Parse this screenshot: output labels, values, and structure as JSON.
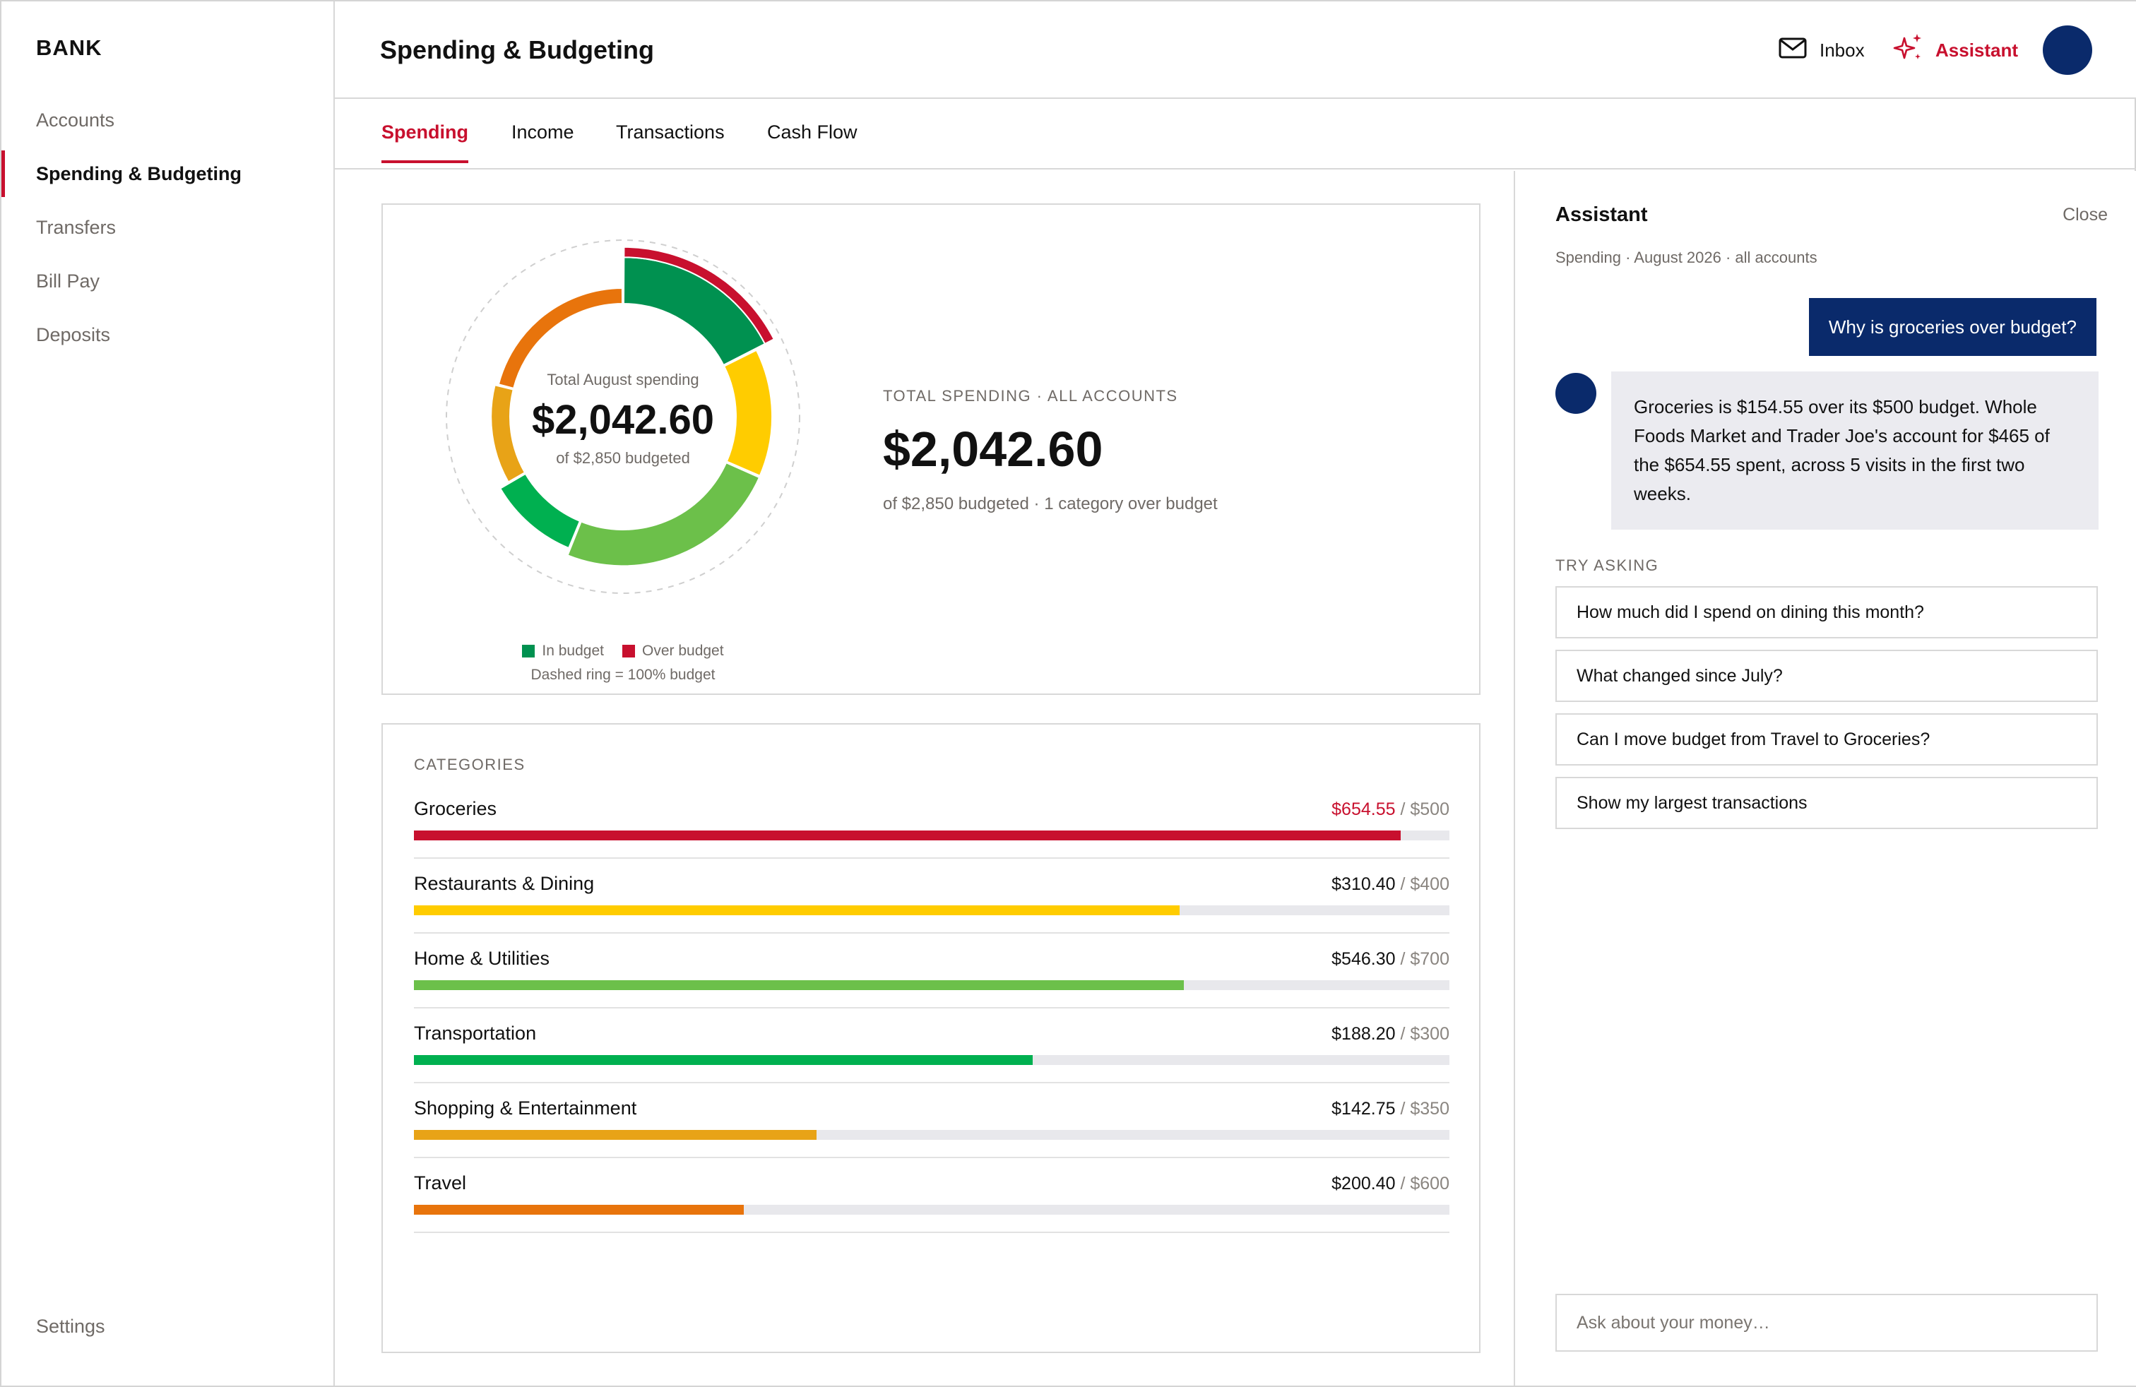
{
  "brand": "BANK",
  "nav": {
    "items": [
      {
        "label": "Accounts",
        "active": false
      },
      {
        "label": "Spending & Budgeting",
        "active": true
      },
      {
        "label": "Transfers",
        "active": false
      },
      {
        "label": "Bill Pay",
        "active": false
      },
      {
        "label": "Deposits",
        "active": false
      }
    ],
    "settings_label": "Settings"
  },
  "header": {
    "title": "Spending & Budgeting",
    "inbox_label": "Inbox",
    "assistant_label": "Assistant"
  },
  "tabs": [
    {
      "label": "Spending",
      "active": true
    },
    {
      "label": "Income",
      "active": false
    },
    {
      "label": "Transactions",
      "active": false
    },
    {
      "label": "Cash Flow",
      "active": false
    }
  ],
  "summary": {
    "donut_label": "Total August spending",
    "donut_value": "$2,042.60",
    "donut_sub": "of $2,850 budgeted",
    "caption": "TOTAL SPENDING · ALL ACCOUNTS",
    "value": "$2,042.60",
    "sub": "of $2,850 budgeted · 1 category over budget",
    "legend_in": "In budget",
    "legend_over": "Over budget",
    "legend_note": "Dashed ring = 100% budget"
  },
  "categories": {
    "title": "CATEGORIES",
    "items": [
      {
        "name": "Groceries",
        "spent": "$654.55",
        "budget": "/ $500",
        "spent_value": 654.55,
        "budget_value": 500,
        "over": true,
        "color": "#c8102e"
      },
      {
        "name": "Restaurants & Dining",
        "spent": "$310.40",
        "budget": "/ $400",
        "spent_value": 310.4,
        "budget_value": 400,
        "over": false,
        "color": "#ffcc00"
      },
      {
        "name": "Home & Utilities",
        "spent": "$546.30",
        "budget": "/ $700",
        "spent_value": 546.3,
        "budget_value": 700,
        "over": false,
        "color": "#6cc04a"
      },
      {
        "name": "Transportation",
        "spent": "$188.20",
        "budget": "/ $300",
        "spent_value": 188.2,
        "budget_value": 300,
        "over": false,
        "color": "#00b050"
      },
      {
        "name": "Shopping & Entertainment",
        "spent": "$142.75",
        "budget": "/ $350",
        "spent_value": 142.75,
        "budget_value": 350,
        "over": false,
        "color": "#e8a317"
      },
      {
        "name": "Travel",
        "spent": "$200.40",
        "budget": "/ $600",
        "spent_value": 200.4,
        "budget_value": 600,
        "over": false,
        "color": "#e8740c"
      }
    ]
  },
  "donut_segments": [
    {
      "category": "Groceries",
      "color": "#009150",
      "over_color": "#c8102e"
    },
    {
      "category": "Restaurants & Dining",
      "color": "#ffcc00"
    },
    {
      "category": "Home & Utilities",
      "color": "#6cc04a"
    },
    {
      "category": "Transportation",
      "color": "#00b050"
    },
    {
      "category": "Shopping & Entertainment",
      "color": "#e8a317"
    },
    {
      "category": "Travel",
      "color": "#e8740c"
    }
  ],
  "assistant": {
    "title": "Assistant",
    "close_label": "Close",
    "context": "Spending · August 2026 · all accounts",
    "user_message": "Why is groceries over budget?",
    "bot_message": "Groceries is $154.55 over its $500 budget. Whole Foods Market and Trader Joe's account for $465 of the $654.55 spent, across 5 visits in the first two weeks.",
    "try_title": "TRY ASKING",
    "suggestions": [
      "How much did I spend on dining this month?",
      "What changed since July?",
      "Can I move budget from Travel to Groceries?",
      "Show my largest transactions"
    ],
    "input_placeholder": "Ask about your money…"
  },
  "colors": {
    "accent": "#c8102e",
    "navy": "#0a2a6b",
    "in_budget": "#009150",
    "over_budget": "#c8102e"
  },
  "icons": {
    "inbox": "envelope-icon",
    "assistant": "sparkle-icon"
  }
}
